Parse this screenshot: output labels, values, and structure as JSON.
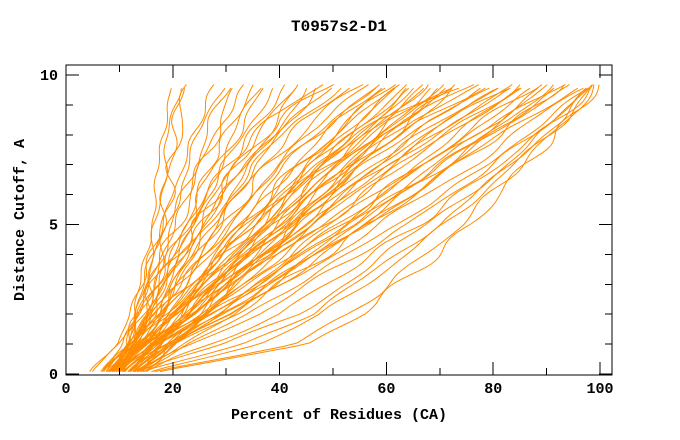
{
  "window": {
    "background": "#ffffff"
  },
  "chart_data": {
    "type": "line",
    "title": "T0957s2-D1",
    "xlabel": "Percent of Residues (CA)",
    "ylabel": "Distance Cutoff, A",
    "xlim": [
      0,
      102
    ],
    "ylim": [
      0,
      10.4
    ],
    "grid": false,
    "legend": null,
    "x_major_ticks": [
      0,
      20,
      40,
      60,
      80,
      100
    ],
    "x_minor_ticks": [
      10,
      30,
      50,
      70,
      90
    ],
    "y_major_ticks": [
      0,
      5,
      10
    ],
    "y_minor_ticks": [
      1,
      2,
      3,
      4,
      6,
      7,
      8,
      9
    ],
    "line_color": "#FF8C00",
    "axis_color": "#000000",
    "background": "#FFFFFF",
    "description": "Approximately 80 overlapping model curves (percent of CA residues under each distance cutoff). Each curve below lists estimated percent values at the shared anchor cutoffs.",
    "anchor_cutoffs": [
      0.1,
      1,
      2,
      3.5,
      5,
      7,
      8.5,
      9.75
    ],
    "curves": [
      [
        9,
        11.5,
        13,
        14.5,
        16,
        17.5,
        18.5,
        19.5
      ],
      [
        10,
        12.5,
        14,
        15.5,
        17,
        18.5,
        19.8,
        21
      ],
      [
        10.5,
        13,
        14.8,
        16.3,
        17.8,
        19.3,
        20.8,
        22
      ],
      [
        11,
        13.5,
        15.2,
        17,
        18.5,
        20,
        21.5,
        22.8
      ],
      [
        4.5,
        9.5,
        12,
        15,
        18,
        22,
        25,
        28
      ],
      [
        5,
        10,
        12.5,
        15.5,
        19,
        23,
        26,
        29.5
      ],
      [
        7.5,
        11,
        13.5,
        16.5,
        20,
        24,
        27.5,
        31
      ],
      [
        8,
        11.5,
        14,
        17,
        21,
        25.5,
        29,
        32.5
      ],
      [
        6.5,
        10.8,
        13.2,
        16.8,
        20.5,
        25,
        29.5,
        34
      ],
      [
        8.5,
        12,
        15,
        18.5,
        22.5,
        27,
        31.5,
        35.5
      ],
      [
        9,
        12.5,
        15.5,
        19,
        23.5,
        28.5,
        33,
        37
      ],
      [
        7.8,
        11.8,
        14.8,
        18.8,
        23,
        28,
        33.5,
        38.5
      ],
      [
        8.2,
        12.2,
        15.8,
        19.5,
        24,
        29.5,
        35,
        40
      ],
      [
        9.5,
        13,
        16.5,
        20.5,
        25,
        31,
        36.5,
        41.5
      ],
      [
        8.8,
        12.8,
        16,
        20,
        25.5,
        32,
        38,
        43
      ],
      [
        9.2,
        13.5,
        17,
        21.5,
        26.5,
        33,
        39.5,
        44.5
      ],
      [
        10,
        14,
        17.5,
        22,
        27.5,
        34.5,
        41,
        46
      ],
      [
        10.8,
        14.5,
        18,
        23,
        28.5,
        35.5,
        42.5,
        47.5
      ],
      [
        7,
        11,
        14,
        18,
        23,
        30,
        38,
        48
      ],
      [
        7.5,
        11.5,
        14.5,
        19,
        24.5,
        32,
        40,
        49.5
      ],
      [
        8,
        12,
        15.5,
        20,
        26,
        33.5,
        41.5,
        51
      ],
      [
        8.5,
        12.5,
        16,
        21,
        27,
        35,
        43.5,
        52.5
      ],
      [
        9,
        13,
        17,
        22,
        28.5,
        36.5,
        45,
        54
      ],
      [
        9.5,
        13.8,
        17.5,
        23,
        29.5,
        38,
        46.5,
        55.5
      ],
      [
        10,
        14.2,
        18.5,
        24,
        31,
        39.5,
        48,
        57
      ],
      [
        10.5,
        15,
        19,
        25,
        32,
        41,
        50,
        58.5
      ],
      [
        11,
        15.5,
        20,
        26,
        33.5,
        42.5,
        51.5,
        60
      ],
      [
        11.5,
        16,
        20.5,
        27,
        34.5,
        44,
        53,
        61.5
      ],
      [
        12,
        16.5,
        21.5,
        28,
        36,
        45.5,
        55,
        63
      ],
      [
        12.5,
        17,
        22,
        29,
        37,
        47,
        56.5,
        64.5
      ],
      [
        9.8,
        14.8,
        19.5,
        26.5,
        34,
        44.5,
        54.5,
        62
      ],
      [
        10.2,
        15.8,
        21,
        28.5,
        36.5,
        46.5,
        56,
        63.5
      ],
      [
        13,
        17.5,
        23,
        30,
        38.5,
        48.5,
        58,
        66
      ],
      [
        13.5,
        18,
        23.5,
        31,
        39.5,
        50,
        59.5,
        67.5
      ],
      [
        11.8,
        16.8,
        22.5,
        30.5,
        39,
        49.5,
        60,
        68
      ],
      [
        14,
        18.5,
        24.5,
        32,
        41,
        51.5,
        61,
        69
      ],
      [
        12.2,
        17.2,
        23.8,
        31.5,
        40.5,
        51,
        62,
        70
      ],
      [
        14.5,
        19,
        25,
        33,
        42,
        53,
        63.5,
        71
      ],
      [
        10.8,
        16.2,
        22.8,
        31.8,
        41.5,
        52.5,
        63,
        70.5
      ],
      [
        15,
        19.5,
        26,
        34,
        43.5,
        54.5,
        65,
        72
      ],
      [
        9.3,
        14.5,
        20.5,
        28.8,
        37.8,
        48,
        58.5,
        66.5
      ],
      [
        8.3,
        13.3,
        18.8,
        26.8,
        35.5,
        46,
        57,
        65
      ],
      [
        12.8,
        18.2,
        24.8,
        33.5,
        43,
        54,
        64.5,
        71.5
      ],
      [
        7.2,
        12.8,
        18,
        25.5,
        33,
        43.5,
        53.5,
        61
      ],
      [
        6.8,
        11.8,
        16.8,
        23.5,
        30.5,
        40,
        50.5,
        59
      ],
      [
        13.8,
        19.2,
        26.5,
        35,
        44.5,
        55.5,
        66,
        73
      ],
      [
        8,
        13,
        18,
        26,
        35,
        47,
        59,
        74
      ],
      [
        8.5,
        13.5,
        19,
        27,
        36.5,
        49,
        61,
        75.5
      ],
      [
        9,
        14,
        20,
        28.5,
        38,
        51,
        63,
        77
      ],
      [
        9.5,
        14.5,
        21,
        30,
        40,
        53,
        65,
        78.5
      ],
      [
        10,
        15,
        22,
        31,
        41.5,
        55,
        67,
        80
      ],
      [
        10.5,
        15.5,
        23,
        32.5,
        43,
        57,
        69,
        81.5
      ],
      [
        11,
        16,
        24,
        34,
        45,
        59,
        71,
        83
      ],
      [
        11.5,
        17,
        25,
        35.5,
        46.5,
        61,
        73,
        84.5
      ],
      [
        12,
        17.5,
        26,
        37,
        48.5,
        63,
        75,
        86
      ],
      [
        12.5,
        18,
        27,
        38.5,
        50,
        65,
        77,
        87.5
      ],
      [
        13,
        19,
        28,
        40,
        52,
        67,
        79,
        89
      ],
      [
        13.5,
        19.5,
        29,
        41.5,
        53.5,
        69,
        81,
        90
      ],
      [
        14,
        20,
        30,
        43,
        55.5,
        71,
        83,
        91.5
      ],
      [
        14.5,
        21,
        31.5,
        44.5,
        57,
        73,
        85,
        93
      ],
      [
        9.8,
        15.8,
        23.8,
        34.5,
        46,
        60.5,
        73.5,
        85.5
      ],
      [
        10.8,
        16.8,
        25.5,
        36.5,
        48,
        62.5,
        75.5,
        87
      ],
      [
        8.8,
        14.8,
        22.2,
        32.8,
        44,
        58,
        70.5,
        82
      ],
      [
        11.8,
        18.2,
        27.5,
        39.5,
        51.5,
        66.5,
        78.5,
        88.5
      ],
      [
        12.8,
        19.2,
        29.2,
        42,
        54.5,
        70,
        82,
        90.5
      ],
      [
        7.8,
        13.8,
        20.8,
        30.8,
        42,
        56,
        68,
        79.5
      ],
      [
        13.2,
        20.5,
        31,
        44,
        56.5,
        72,
        84,
        92
      ],
      [
        9.2,
        15.2,
        23.2,
        33.8,
        45.5,
        59.5,
        72,
        84
      ],
      [
        10,
        17,
        26,
        38,
        51,
        67,
        81,
        94
      ],
      [
        11,
        18,
        28,
        40,
        53.5,
        70,
        84,
        95.5
      ],
      [
        12,
        19,
        30,
        43,
        56,
        73,
        86,
        97
      ],
      [
        13,
        21,
        32,
        45,
        59,
        76,
        88,
        98
      ],
      [
        14,
        23,
        34,
        48,
        62,
        79,
        90,
        99
      ],
      [
        12.5,
        24,
        36,
        50,
        64,
        80,
        91,
        99.5
      ],
      [
        15,
        27,
        40,
        53,
        66,
        81,
        92,
        100
      ],
      [
        13.5,
        30,
        43,
        56,
        68,
        82,
        92.5,
        99
      ],
      [
        14.5,
        33,
        46,
        58,
        70,
        83,
        93,
        98.5
      ],
      [
        16,
        36,
        48,
        60,
        71,
        84,
        93.5,
        99.2
      ],
      [
        16.5,
        43,
        53,
        64,
        74,
        85,
        94,
        99.6
      ],
      [
        17.5,
        46,
        55,
        66,
        76,
        86,
        94.5,
        100
      ]
    ]
  }
}
